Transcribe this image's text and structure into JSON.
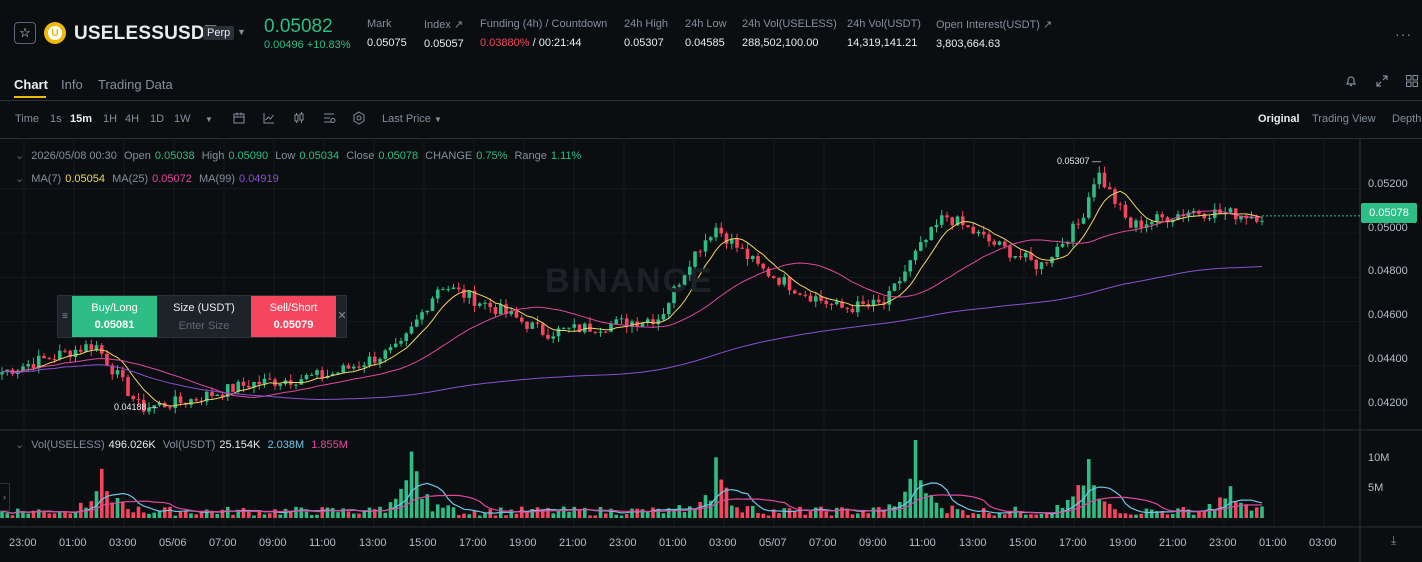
{
  "header": {
    "symbol": "USELESSUSDT",
    "contract_type": "Perp",
    "last_price": "0.05082",
    "change": "0.00496 +10.83%",
    "stats": [
      {
        "label": "Mark",
        "value": "0.05075"
      },
      {
        "label": "Index ↗",
        "value": "0.05057"
      },
      {
        "label": "Funding (4h) / Countdown",
        "value_red": "0.03880%",
        "value": " / 00:21:44"
      },
      {
        "label": "24h High",
        "value": "0.05307"
      },
      {
        "label": "24h Low",
        "value": "0.04585"
      },
      {
        "label": "24h Vol(USELESS)",
        "value": "288,502,100.00"
      },
      {
        "label": "24h Vol(USDT)",
        "value": "14,319,141.21"
      },
      {
        "label": "Open Interest(USDT) ↗",
        "value": "3,803,664.63"
      }
    ]
  },
  "tabs": [
    "Chart",
    "Info",
    "Trading Data"
  ],
  "toolbar": {
    "intervals": [
      "Time",
      "1s",
      "15m",
      "1H",
      "4H",
      "1D",
      "1W"
    ],
    "active_interval": "15m",
    "price_type": "Last Price",
    "views": [
      "Original",
      "Trading View",
      "Depth"
    ],
    "active_view": "Original"
  },
  "legend": {
    "datetime": "2026/05/08 00:30",
    "open_label": "Open",
    "open": "0.05038",
    "high_label": "High",
    "high": "0.05090",
    "low_label": "Low",
    "low": "0.05034",
    "close_label": "Close",
    "close": "0.05078",
    "change_label": "CHANGE",
    "change": "0.75%",
    "range_label": "Range",
    "range": "1.11%",
    "ma7_label": "MA(7)",
    "ma7": "0.05054",
    "ma25_label": "MA(25)",
    "ma25": "0.05072",
    "ma99_label": "MA(99)",
    "ma99": "0.04919",
    "vol_label": "Vol(USELESS)",
    "vol": "496.026K",
    "volusdt_label": "Vol(USDT)",
    "volusdt": "25.154K",
    "vol_ma1": "2.038M",
    "vol_ma2": "1.855M"
  },
  "order_panel": {
    "buy_label": "Buy/Long",
    "buy_price": "0.05081",
    "size_label": "Size (USDT)",
    "size_placeholder": "Enter Size",
    "sell_label": "Sell/Short",
    "sell_price": "0.05079"
  },
  "current_price_tag": "0.05078",
  "high_marker": "0.05307",
  "low_marker": "0.04188",
  "watermark": "BINANCE",
  "y_axis": [
    "0.05200",
    "0.05000",
    "0.04800",
    "0.04600",
    "0.04400",
    "0.04200"
  ],
  "vol_axis": [
    "10M",
    "5M"
  ],
  "x_axis": [
    "23:00",
    "01:00",
    "03:00",
    "05/06",
    "07:00",
    "09:00",
    "11:00",
    "13:00",
    "15:00",
    "17:00",
    "19:00",
    "21:00",
    "23:00",
    "01:00",
    "03:00",
    "05/07",
    "07:00",
    "09:00",
    "11:00",
    "13:00",
    "15:00",
    "17:00",
    "19:00",
    "21:00",
    "23:00",
    "01:00",
    "03:00"
  ],
  "colors": {
    "up": "#2ebd85",
    "down": "#f6465d",
    "accent": "#f0b90b",
    "ma7": "#f0d565",
    "ma25": "#e0479e",
    "ma99": "#8a4fd1",
    "vol_ma1": "#6fc6e8",
    "vol_ma2": "#e0479e"
  },
  "chart_data": {
    "type": "candlestick",
    "y_range": [
      0.0412,
      0.0533
    ],
    "close_anchors": [
      {
        "x": 0,
        "y": 0.0437
      },
      {
        "x": 95,
        "y": 0.045
      },
      {
        "x": 140,
        "y": 0.0421
      },
      {
        "x": 185,
        "y": 0.0424
      },
      {
        "x": 250,
        "y": 0.0432
      },
      {
        "x": 330,
        "y": 0.0436
      },
      {
        "x": 400,
        "y": 0.0448
      },
      {
        "x": 440,
        "y": 0.0477
      },
      {
        "x": 500,
        "y": 0.0465
      },
      {
        "x": 545,
        "y": 0.0455
      },
      {
        "x": 600,
        "y": 0.0458
      },
      {
        "x": 660,
        "y": 0.0462
      },
      {
        "x": 690,
        "y": 0.0488
      },
      {
        "x": 715,
        "y": 0.0503
      },
      {
        "x": 760,
        "y": 0.0484
      },
      {
        "x": 800,
        "y": 0.0474
      },
      {
        "x": 840,
        "y": 0.0466
      },
      {
        "x": 885,
        "y": 0.0468
      },
      {
        "x": 915,
        "y": 0.049
      },
      {
        "x": 945,
        "y": 0.0508
      },
      {
        "x": 990,
        "y": 0.0496
      },
      {
        "x": 1040,
        "y": 0.0485
      },
      {
        "x": 1080,
        "y": 0.0505
      },
      {
        "x": 1097,
        "y": 0.0528
      },
      {
        "x": 1130,
        "y": 0.0503
      },
      {
        "x": 1190,
        "y": 0.051
      },
      {
        "x": 1262,
        "y": 0.05078
      }
    ],
    "volume_peaks": [
      {
        "x": 103,
        "v": 8.5
      },
      {
        "x": 413,
        "v": 11.5
      },
      {
        "x": 717,
        "v": 10.5
      },
      {
        "x": 917,
        "v": 13.5
      },
      {
        "x": 1087,
        "v": 10.2
      },
      {
        "x": 1230,
        "v": 5.5
      }
    ],
    "vol_range": [
      0,
      13.5
    ]
  }
}
